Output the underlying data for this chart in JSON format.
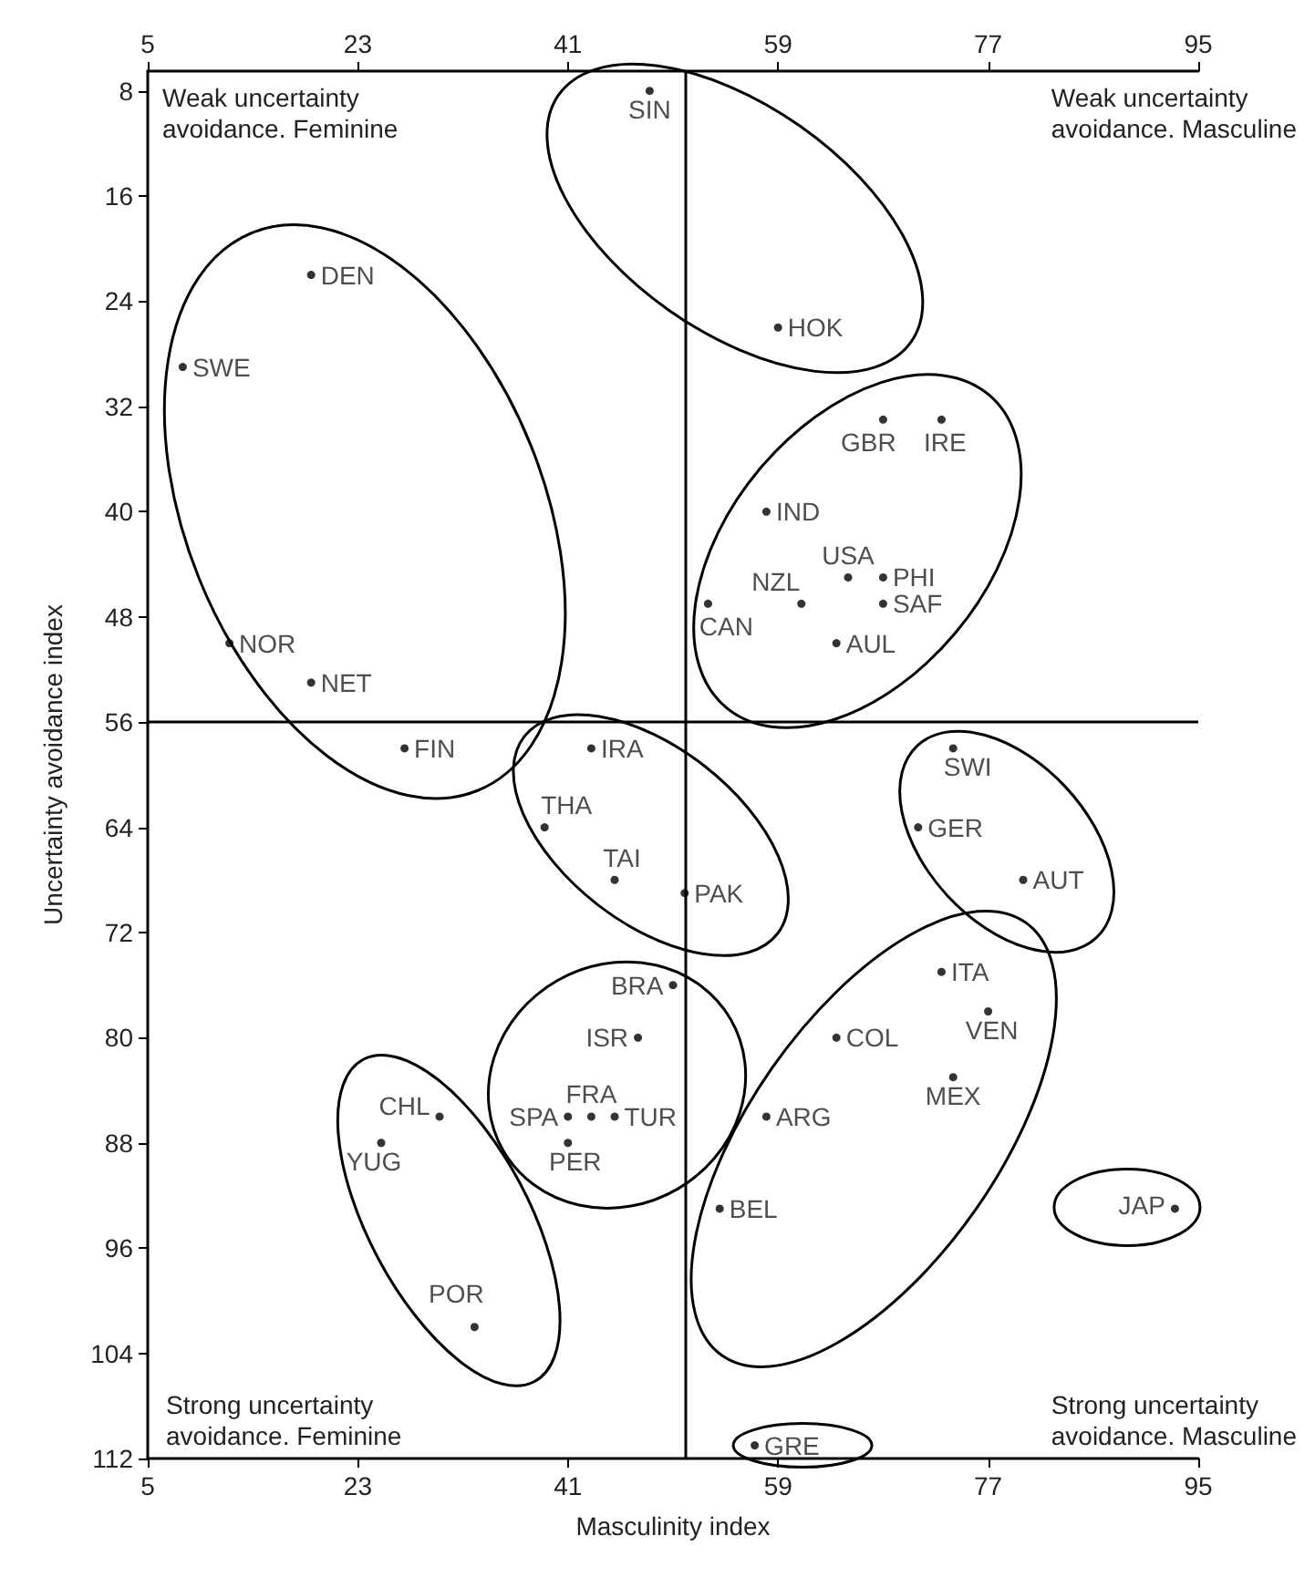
{
  "chart_data": {
    "type": "scatter",
    "xlabel": "Masculinity index",
    "ylabel": "Uncertainty avoidance index",
    "xlim": [
      5,
      95
    ],
    "xticks": [
      5,
      23,
      41,
      59,
      77,
      95
    ],
    "x2lim": [
      5,
      95
    ],
    "x2ticks": [
      5,
      23,
      41,
      59,
      77,
      95
    ],
    "ylim": [
      112,
      6.5
    ],
    "yticks": [
      8,
      16,
      24,
      32,
      40,
      48,
      56,
      64,
      72,
      80,
      88,
      96,
      104,
      112
    ],
    "grid": false,
    "legend": false,
    "marker": "circle",
    "ref_lines": [
      {
        "axis": "x",
        "value": 51
      },
      {
        "axis": "y",
        "value": 56
      }
    ],
    "annotations": [
      "Weak uncertainty\navoidance. Feminine",
      "Weak uncertainty\navoidance. Masculine",
      "Strong uncertainty\navoidance. Feminine",
      "Strong uncertainty\navoidance. Masculine"
    ],
    "series": [
      {
        "name": "SIN",
        "color": "#000000",
        "x": [
          48
        ],
        "values": [
          8
        ]
      },
      {
        "name": "DEN",
        "color": "#000000",
        "x": [
          19
        ],
        "values": [
          22
        ]
      },
      {
        "name": "SWE",
        "color": "#000000",
        "x": [
          8
        ],
        "values": [
          29
        ]
      },
      {
        "name": "NOR",
        "color": "#000000",
        "x": [
          12
        ],
        "values": [
          50
        ]
      },
      {
        "name": "NET",
        "color": "#000000",
        "x": [
          19
        ],
        "values": [
          53
        ]
      },
      {
        "name": "FIN",
        "color": "#000000",
        "x": [
          27
        ],
        "values": [
          58
        ]
      },
      {
        "name": "HOK",
        "color": "#000000",
        "x": [
          59
        ],
        "values": [
          26
        ]
      },
      {
        "name": "GBR",
        "color": "#000000",
        "x": [
          68
        ],
        "values": [
          33
        ]
      },
      {
        "name": "IRE",
        "color": "#000000",
        "x": [
          73
        ],
        "values": [
          33
        ]
      },
      {
        "name": "IND",
        "color": "#000000",
        "x": [
          58
        ],
        "values": [
          40
        ]
      },
      {
        "name": "USA",
        "color": "#000000",
        "x": [
          65
        ],
        "values": [
          45
        ]
      },
      {
        "name": "PHI",
        "color": "#000000",
        "x": [
          68
        ],
        "values": [
          45
        ]
      },
      {
        "name": "SAF",
        "color": "#000000",
        "x": [
          68
        ],
        "values": [
          47
        ]
      },
      {
        "name": "NZL",
        "color": "#000000",
        "x": [
          61
        ],
        "values": [
          47
        ]
      },
      {
        "name": "CAN",
        "color": "#000000",
        "x": [
          53
        ],
        "values": [
          47
        ]
      },
      {
        "name": "AUL",
        "color": "#000000",
        "x": [
          64
        ],
        "values": [
          50
        ]
      },
      {
        "name": "IRA",
        "color": "#000000",
        "x": [
          43
        ],
        "values": [
          58
        ]
      },
      {
        "name": "THA",
        "color": "#000000",
        "x": [
          39
        ],
        "values": [
          64
        ]
      },
      {
        "name": "TAI",
        "color": "#000000",
        "x": [
          45
        ],
        "values": [
          68
        ]
      },
      {
        "name": "PAK",
        "color": "#000000",
        "x": [
          51
        ],
        "values": [
          69
        ]
      },
      {
        "name": "SWI",
        "color": "#000000",
        "x": [
          74
        ],
        "values": [
          58
        ]
      },
      {
        "name": "GER",
        "color": "#000000",
        "x": [
          71
        ],
        "values": [
          64
        ]
      },
      {
        "name": "AUT",
        "color": "#000000",
        "x": [
          80
        ],
        "values": [
          68
        ]
      },
      {
        "name": "ITA",
        "color": "#000000",
        "x": [
          73
        ],
        "values": [
          75
        ]
      },
      {
        "name": "VEN",
        "color": "#000000",
        "x": [
          77
        ],
        "values": [
          78
        ]
      },
      {
        "name": "COL",
        "color": "#000000",
        "x": [
          64
        ],
        "values": [
          80
        ]
      },
      {
        "name": "MEX",
        "color": "#000000",
        "x": [
          74
        ],
        "values": [
          83
        ]
      },
      {
        "name": "ARG",
        "color": "#000000",
        "x": [
          58
        ],
        "values": [
          86
        ]
      },
      {
        "name": "BEL",
        "color": "#000000",
        "x": [
          54
        ],
        "values": [
          93
        ]
      },
      {
        "name": "JAP",
        "color": "#000000",
        "x": [
          93
        ],
        "values": [
          93
        ]
      },
      {
        "name": "GRE",
        "color": "#000000",
        "x": [
          57
        ],
        "values": [
          111
        ]
      },
      {
        "name": "BRA",
        "color": "#000000",
        "x": [
          50
        ],
        "values": [
          76
        ]
      },
      {
        "name": "ISR",
        "color": "#000000",
        "x": [
          47
        ],
        "values": [
          80
        ]
      },
      {
        "name": "SPA",
        "color": "#000000",
        "x": [
          41
        ],
        "values": [
          86
        ]
      },
      {
        "name": "FRA",
        "color": "#000000",
        "x": [
          43
        ],
        "values": [
          86
        ]
      },
      {
        "name": "TUR",
        "color": "#000000",
        "x": [
          45
        ],
        "values": [
          86
        ]
      },
      {
        "name": "PER",
        "color": "#000000",
        "x": [
          41
        ],
        "values": [
          88
        ]
      },
      {
        "name": "CHL",
        "color": "#000000",
        "x": [
          30
        ],
        "values": [
          86
        ]
      },
      {
        "name": "YUG",
        "color": "#000000",
        "x": [
          25
        ],
        "values": [
          88
        ]
      },
      {
        "name": "POR",
        "color": "#000000",
        "x": [
          33
        ],
        "values": [
          102
        ]
      }
    ]
  }
}
